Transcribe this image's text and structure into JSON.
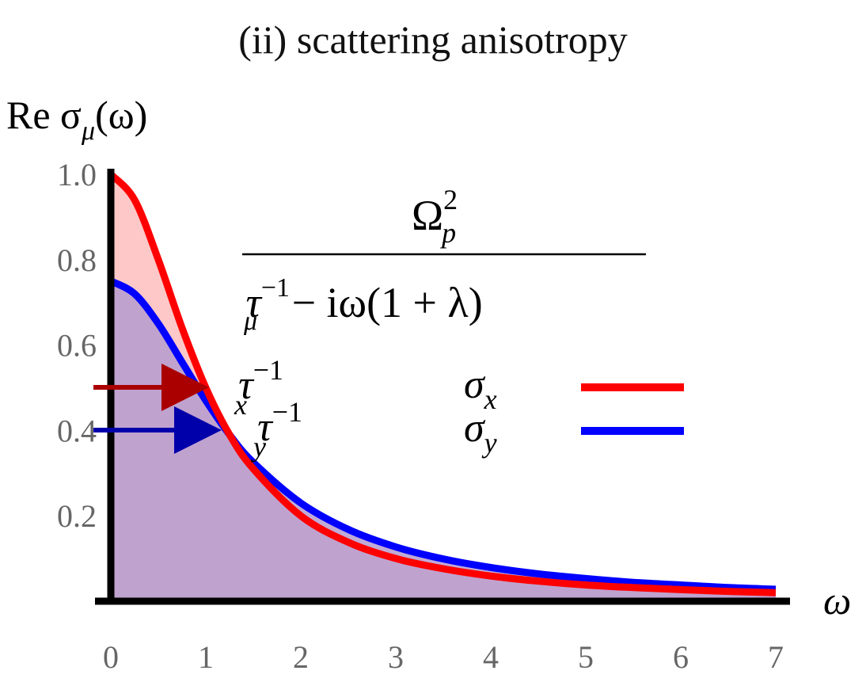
{
  "chart_data": {
    "type": "area",
    "title": "(ii) scattering anisotropy",
    "ylabel": "Re σ",
    "ylabel_sub": "μ",
    "ylabel_arg": "(ω)",
    "xlabel": "ω",
    "xlim": [
      0,
      7
    ],
    "ylim": [
      0,
      1.0
    ],
    "x_ticks": [
      "0",
      "1",
      "2",
      "3",
      "4",
      "5",
      "6",
      "7"
    ],
    "y_ticks": [
      "0.2",
      "0.4",
      "0.6",
      "0.8",
      "1.0"
    ],
    "grid": false,
    "legend_position": "right",
    "formula": {
      "numerator": "Ω",
      "numerator_sup": "2",
      "numerator_sub": "p",
      "denominator_main": "τ",
      "denominator_sup": "−1",
      "denominator_sub": "μ",
      "denominator_rest": " − iω(1 + λ)"
    },
    "annotations": [
      {
        "base": "τ",
        "sup": "−1",
        "sub": "x",
        "y": 0.495,
        "color": "#aa0000"
      },
      {
        "base": "τ",
        "sup": "−1",
        "sub": "y",
        "y": 0.395,
        "color": "#0000aa"
      }
    ],
    "series": [
      {
        "name": "σ",
        "sub": "x",
        "color": "#ff0000",
        "fill": "#ffc8c8",
        "x": [
          0,
          0.25,
          0.5,
          0.75,
          1.0,
          1.25,
          1.5,
          2.0,
          2.5,
          3.0,
          3.5,
          4.0,
          4.5,
          5.0,
          5.5,
          6.0,
          6.5,
          7.0
        ],
        "y": [
          1.0,
          0.94,
          0.8,
          0.64,
          0.5,
          0.39,
          0.31,
          0.2,
          0.138,
          0.1,
          0.076,
          0.059,
          0.047,
          0.038,
          0.032,
          0.027,
          0.023,
          0.02
        ]
      },
      {
        "name": "σ",
        "sub": "y",
        "color": "#0000ff",
        "fill": "#b59bd0",
        "x": [
          0,
          0.25,
          0.5,
          0.75,
          1.0,
          1.25,
          1.5,
          2.0,
          2.5,
          3.0,
          3.5,
          4.0,
          4.5,
          5.0,
          5.5,
          6.0,
          6.5,
          7.0
        ],
        "y": [
          0.75,
          0.72,
          0.65,
          0.56,
          0.47,
          0.39,
          0.325,
          0.23,
          0.168,
          0.127,
          0.099,
          0.079,
          0.064,
          0.053,
          0.044,
          0.038,
          0.032,
          0.028
        ]
      }
    ]
  }
}
